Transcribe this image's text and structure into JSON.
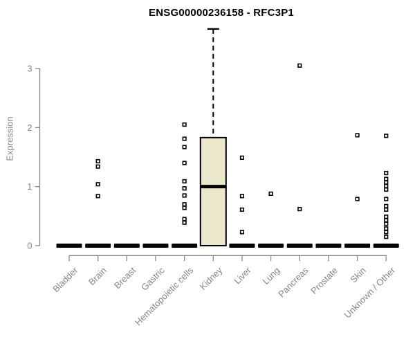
{
  "title": "ENSG00000236158 - RFC3P1",
  "y_axis": {
    "label": "Expression"
  },
  "chart_data": {
    "type": "boxplot",
    "title": "ENSG00000236158 - RFC3P1",
    "xlabel": "",
    "ylabel": "Expression",
    "ylim": [
      0,
      3.7
    ],
    "yticks": [
      0,
      1,
      2,
      3
    ],
    "grid": false,
    "legend": "none",
    "categories": [
      "Bladder",
      "Brain",
      "Breast",
      "Gastric",
      "Hematopoietic cells",
      "Kidney",
      "Liver",
      "Lung",
      "Pancreas",
      "Prostate",
      "Skin",
      "Unknown / Other"
    ],
    "boxes": [
      {
        "category": "Bladder",
        "q1": 0,
        "median": 0,
        "q3": 0,
        "whisker_low": 0,
        "whisker_high": 0,
        "points": []
      },
      {
        "category": "Brain",
        "q1": 0,
        "median": 0,
        "q3": 0,
        "whisker_low": 0,
        "whisker_high": 0,
        "points": [
          1.43,
          1.34,
          1.04,
          0.84
        ]
      },
      {
        "category": "Breast",
        "q1": 0,
        "median": 0,
        "q3": 0,
        "whisker_low": 0,
        "whisker_high": 0,
        "points": []
      },
      {
        "category": "Gastric",
        "q1": 0,
        "median": 0,
        "q3": 0,
        "whisker_low": 0,
        "whisker_high": 0,
        "points": []
      },
      {
        "category": "Hematopoietic cells",
        "q1": 0,
        "median": 0,
        "q3": 0,
        "whisker_low": 0,
        "whisker_high": 0,
        "points": [
          2.05,
          1.81,
          1.67,
          1.4,
          1.09,
          0.97,
          0.85,
          0.7,
          0.64,
          0.45,
          0.39
        ]
      },
      {
        "category": "Kidney",
        "q1": 0,
        "median": 1.0,
        "q3": 1.83,
        "whisker_low": 0,
        "whisker_high": 3.67,
        "points": []
      },
      {
        "category": "Liver",
        "q1": 0,
        "median": 0,
        "q3": 0,
        "whisker_low": 0,
        "whisker_high": 0,
        "points": [
          1.49,
          0.84,
          0.61,
          0.23
        ]
      },
      {
        "category": "Lung",
        "q1": 0,
        "median": 0,
        "q3": 0,
        "whisker_low": 0,
        "whisker_high": 0,
        "points": [
          0.88
        ]
      },
      {
        "category": "Pancreas",
        "q1": 0,
        "median": 0,
        "q3": 0,
        "whisker_low": 0,
        "whisker_high": 0,
        "points": [
          3.05,
          0.62
        ]
      },
      {
        "category": "Prostate",
        "q1": 0,
        "median": 0,
        "q3": 0,
        "whisker_low": 0,
        "whisker_high": 0,
        "points": []
      },
      {
        "category": "Skin",
        "q1": 0,
        "median": 0,
        "q3": 0,
        "whisker_low": 0,
        "whisker_high": 0,
        "points": [
          1.87,
          0.79
        ]
      },
      {
        "category": "Unknown / Other",
        "q1": 0,
        "median": 0,
        "q3": 0,
        "whisker_low": 0,
        "whisker_high": 0,
        "points": [
          1.86,
          1.23,
          1.13,
          1.07,
          1.01,
          0.95,
          0.79,
          0.67,
          0.61,
          0.49,
          0.43,
          0.37,
          0.29,
          0.23,
          0.15
        ]
      }
    ],
    "colors": {
      "box_fill": "#ECE8CC",
      "box_border": "#000000",
      "median": "#000000",
      "zero_bar": "#000000",
      "point_stroke": "#000000",
      "point_fill": "#ffffff",
      "axis": "#888888",
      "tick_text": "#858585",
      "title_text": "#000000"
    }
  }
}
